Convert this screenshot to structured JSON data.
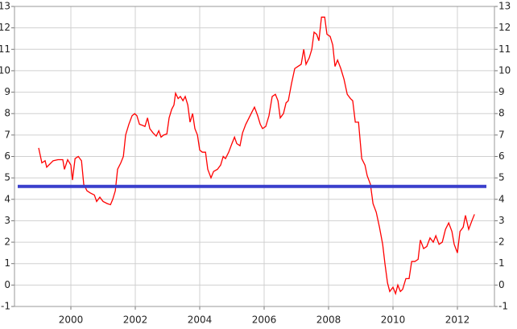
{
  "chart_data": {
    "type": "line",
    "xlim": [
      1998.25,
      2013.15
    ],
    "xticks": [
      2000,
      2002,
      2004,
      2006,
      2008,
      2010,
      2012
    ],
    "ylim": [
      -1,
      13
    ],
    "yticks": [
      -1,
      0,
      1,
      2,
      3,
      4,
      5,
      6,
      7,
      8,
      9,
      10,
      11,
      12,
      13
    ],
    "grid": true,
    "series": [
      {
        "color": "#ff0000",
        "x": [
          1999.0,
          1999.1,
          1999.2,
          1999.25,
          1999.45,
          1999.6,
          1999.75,
          1999.8,
          1999.9,
          2000.0,
          2000.05,
          2000.13,
          2000.23,
          2000.33,
          2000.4,
          2000.5,
          2000.6,
          2000.73,
          2000.8,
          2000.9,
          2001.0,
          2001.13,
          2001.23,
          2001.3,
          2001.38,
          2001.45,
          2001.55,
          2001.63,
          2001.7,
          2001.8,
          2001.9,
          2001.98,
          2002.05,
          2002.13,
          2002.23,
          2002.3,
          2002.38,
          2002.45,
          2002.55,
          2002.65,
          2002.73,
          2002.8,
          2002.88,
          2002.98,
          2003.05,
          2003.13,
          2003.2,
          2003.25,
          2003.33,
          2003.4,
          2003.48,
          2003.55,
          2003.63,
          2003.7,
          2003.78,
          2003.85,
          2003.93,
          2004.0,
          2004.08,
          2004.18,
          2004.25,
          2004.35,
          2004.43,
          2004.55,
          2004.65,
          2004.73,
          2004.8,
          2004.9,
          2005.0,
          2005.08,
          2005.15,
          2005.25,
          2005.33,
          2005.43,
          2005.53,
          2005.63,
          2005.7,
          2005.8,
          2005.88,
          2005.95,
          2006.05,
          2006.15,
          2006.25,
          2006.35,
          2006.43,
          2006.5,
          2006.6,
          2006.68,
          2006.75,
          2006.85,
          2006.95,
          2007.05,
          2007.15,
          2007.23,
          2007.3,
          2007.4,
          2007.48,
          2007.55,
          2007.63,
          2007.7,
          2007.78,
          2007.88,
          2007.95,
          2008.05,
          2008.13,
          2008.2,
          2008.28,
          2008.38,
          2008.48,
          2008.58,
          2008.68,
          2008.75,
          2008.83,
          2008.93,
          2009.03,
          2009.13,
          2009.2,
          2009.3,
          2009.38,
          2009.48,
          2009.58,
          2009.68,
          2009.75,
          2009.83,
          2009.9,
          2010.0,
          2010.08,
          2010.15,
          2010.23,
          2010.3,
          2010.4,
          2010.5,
          2010.58,
          2010.68,
          2010.78,
          2010.85,
          2010.95,
          2011.05,
          2011.15,
          2011.25,
          2011.33,
          2011.43,
          2011.53,
          2011.63,
          2011.73,
          2011.83,
          2011.9,
          2012.0,
          2012.08,
          2012.18,
          2012.25,
          2012.35,
          2012.45,
          2012.53
        ],
        "values": [
          6.4,
          5.7,
          5.8,
          5.5,
          5.8,
          5.85,
          5.85,
          5.4,
          5.85,
          5.6,
          4.9,
          5.9,
          6.0,
          5.8,
          4.7,
          4.4,
          4.3,
          4.2,
          3.9,
          4.1,
          3.9,
          3.8,
          3.75,
          4.0,
          4.4,
          5.4,
          5.7,
          6.0,
          7.0,
          7.5,
          7.9,
          8.0,
          7.9,
          7.5,
          7.45,
          7.4,
          7.8,
          7.3,
          7.1,
          6.95,
          7.2,
          6.9,
          7.0,
          7.05,
          7.8,
          8.2,
          8.4,
          8.95,
          8.7,
          8.8,
          8.6,
          8.8,
          8.4,
          7.6,
          8.0,
          7.3,
          7.0,
          6.3,
          6.2,
          6.2,
          5.4,
          5.0,
          5.3,
          5.4,
          5.6,
          6.0,
          5.9,
          6.2,
          6.6,
          6.9,
          6.6,
          6.5,
          7.1,
          7.5,
          7.8,
          8.1,
          8.3,
          7.9,
          7.5,
          7.3,
          7.4,
          7.9,
          8.8,
          8.9,
          8.6,
          7.8,
          8.0,
          8.5,
          8.6,
          9.4,
          10.1,
          10.2,
          10.3,
          11.0,
          10.3,
          10.6,
          11.0,
          11.8,
          11.7,
          11.4,
          12.5,
          12.5,
          11.7,
          11.6,
          11.2,
          10.2,
          10.5,
          10.1,
          9.6,
          8.9,
          8.7,
          8.6,
          7.6,
          7.6,
          5.9,
          5.6,
          5.1,
          4.7,
          3.8,
          3.4,
          2.7,
          1.9,
          1.0,
          0.1,
          -0.3,
          -0.1,
          -0.4,
          0.0,
          -0.3,
          -0.2,
          0.3,
          0.3,
          1.1,
          1.1,
          1.2,
          2.1,
          1.7,
          1.8,
          2.2,
          2.0,
          2.3,
          1.9,
          2.0,
          2.6,
          2.9,
          2.5,
          1.9,
          1.5,
          2.5,
          2.7,
          3.25,
          2.6,
          3.0,
          3.3
        ]
      },
      {
        "color": "#3a3fcc",
        "x": [
          1998.35,
          2012.9
        ],
        "values": [
          4.6,
          4.6
        ]
      }
    ]
  }
}
